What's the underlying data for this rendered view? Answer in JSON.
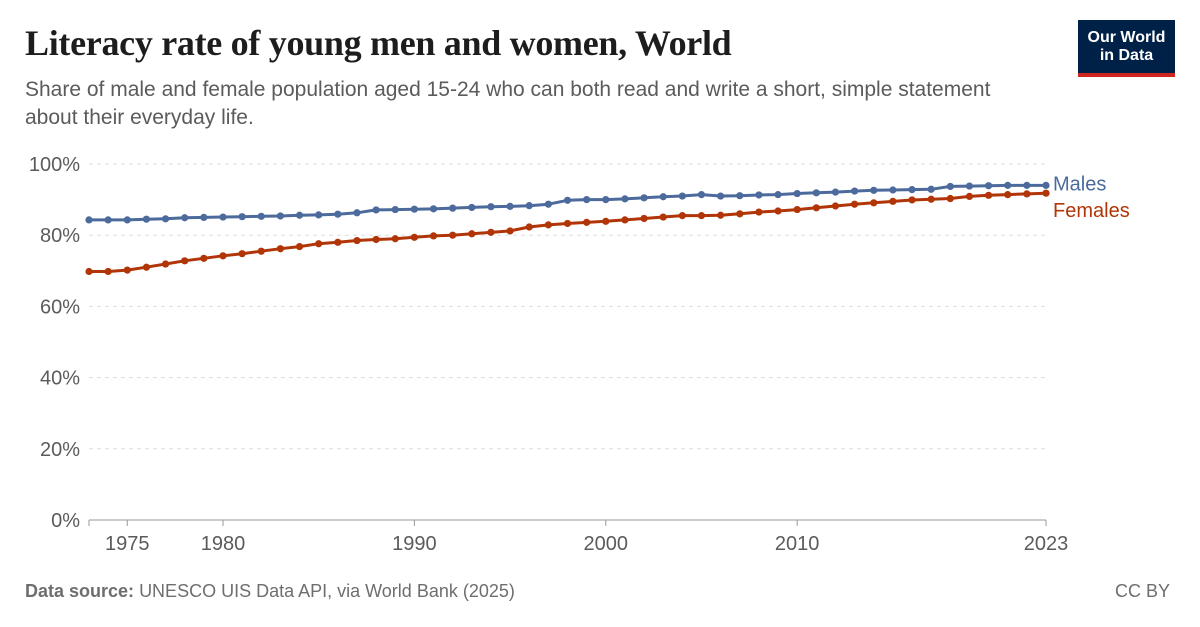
{
  "header": {
    "title": "Literacy rate of young men and women, World",
    "subtitle": "Share of male and female population aged 15-24 who can both read and write a short, simple statement about their everyday life."
  },
  "logo": {
    "line1": "Our World",
    "line2": "in Data"
  },
  "footer": {
    "source_label": "Data source:",
    "source_text": "UNESCO UIS Data API, via World Bank (2025)",
    "license": "CC BY"
  },
  "chart_data": {
    "type": "line",
    "xlim": [
      1973,
      2023
    ],
    "ylim": [
      0,
      100
    ],
    "x_ticks": [
      1975,
      1980,
      1990,
      2000,
      2010,
      2023
    ],
    "y_ticks": [
      0,
      20,
      40,
      60,
      80,
      100
    ],
    "y_tick_labels": [
      "0%",
      "20%",
      "40%",
      "60%",
      "80%",
      "100%"
    ],
    "grid": "horizontal dashed",
    "legend": "line-end labels, right",
    "x": [
      1973,
      1974,
      1975,
      1976,
      1977,
      1978,
      1979,
      1980,
      1981,
      1982,
      1983,
      1984,
      1985,
      1986,
      1987,
      1988,
      1989,
      1990,
      1991,
      1992,
      1993,
      1994,
      1995,
      1996,
      1997,
      1998,
      1999,
      2000,
      2001,
      2002,
      2003,
      2004,
      2005,
      2006,
      2007,
      2008,
      2009,
      2010,
      2011,
      2012,
      2013,
      2014,
      2015,
      2016,
      2017,
      2018,
      2019,
      2020,
      2021,
      2022,
      2023
    ],
    "series": [
      {
        "name": "Males",
        "color": "#4c6a9c",
        "values": [
          84.3,
          84.3,
          84.3,
          84.5,
          84.6,
          84.9,
          85.0,
          85.1,
          85.2,
          85.3,
          85.4,
          85.6,
          85.7,
          85.9,
          86.3,
          87.1,
          87.2,
          87.3,
          87.4,
          87.6,
          87.8,
          88.0,
          88.1,
          88.3,
          88.7,
          89.8,
          90.0,
          90.0,
          90.2,
          90.5,
          90.8,
          91.0,
          91.4,
          91.0,
          91.1,
          91.3,
          91.4,
          91.7,
          91.9,
          92.1,
          92.4,
          92.6,
          92.7,
          92.8,
          92.9,
          93.7,
          93.8,
          93.9,
          94.0,
          94.0,
          94.0
        ]
      },
      {
        "name": "Females",
        "color": "#b13507",
        "values": [
          69.8,
          69.8,
          70.2,
          71.0,
          71.9,
          72.8,
          73.5,
          74.2,
          74.8,
          75.5,
          76.2,
          76.8,
          77.6,
          78.0,
          78.5,
          78.8,
          79.0,
          79.4,
          79.8,
          80.0,
          80.4,
          80.8,
          81.2,
          82.3,
          82.9,
          83.3,
          83.6,
          83.9,
          84.3,
          84.7,
          85.1,
          85.5,
          85.5,
          85.6,
          86.0,
          86.5,
          86.8,
          87.2,
          87.7,
          88.2,
          88.7,
          89.1,
          89.5,
          89.9,
          90.1,
          90.3,
          90.9,
          91.2,
          91.4,
          91.6,
          91.8
        ]
      }
    ]
  }
}
